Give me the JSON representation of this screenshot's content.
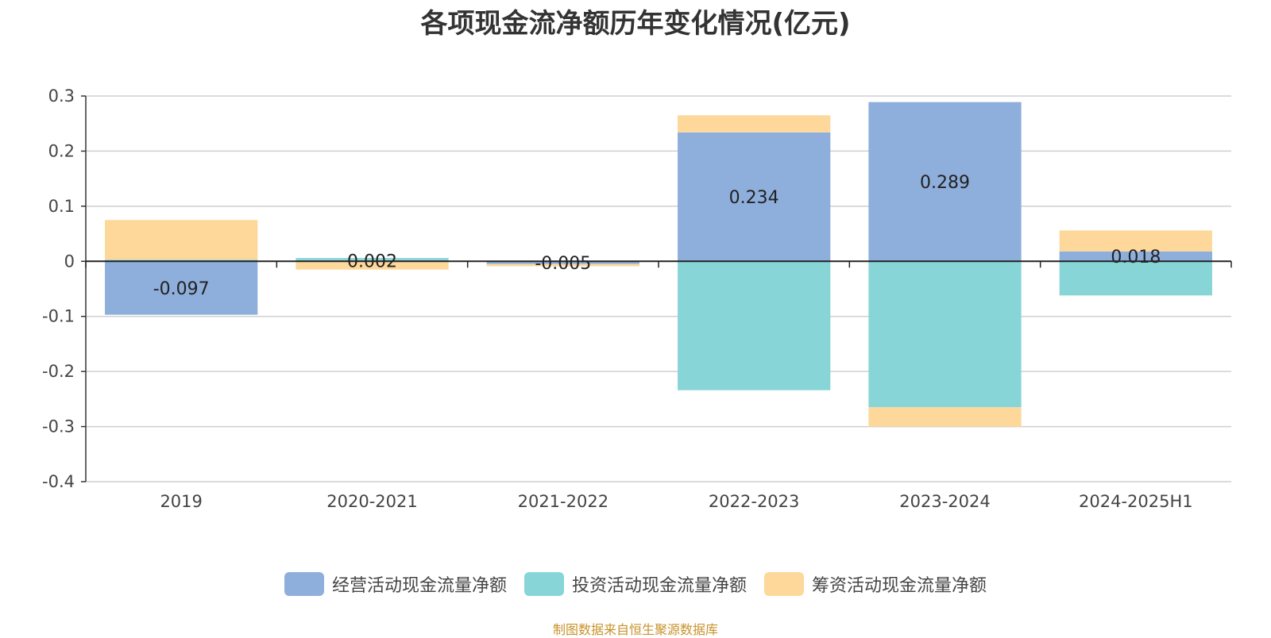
{
  "chart_data": {
    "type": "bar",
    "stacked": true,
    "title": "各项现金流净额历年变化情况(亿元)",
    "categories": [
      "2019",
      "2020-2021",
      "2021-2022",
      "2022-2023",
      "2023-2024",
      "2024-2025H1"
    ],
    "ylim": [
      -0.4,
      0.3
    ],
    "yticks": [
      "0.3",
      "0.2",
      "0.1",
      "0",
      "-0.1",
      "-0.2",
      "-0.3",
      "-0.4"
    ],
    "ytick_values": [
      0.3,
      0.2,
      0.1,
      0,
      -0.1,
      -0.2,
      -0.3,
      -0.4
    ],
    "grid": true,
    "legend_position": "bottom-center",
    "series": [
      {
        "name": "经营活动现金流量净额",
        "color": "#8eaedb",
        "values": [
          -0.097,
          0.002,
          -0.005,
          0.234,
          0.289,
          0.018
        ],
        "labels": [
          "-0.097",
          "0.002",
          "-0.005",
          "0.234",
          "0.289",
          "0.018"
        ]
      },
      {
        "name": "投资活动现金流量净额",
        "color": "#88d5d8",
        "values": [
          0.003,
          0.004,
          0.0,
          -0.234,
          -0.265,
          -0.062
        ]
      },
      {
        "name": "筹资活动现金流量净额",
        "color": "#fdd89a",
        "values": [
          0.072,
          -0.015,
          -0.004,
          0.031,
          -0.035,
          0.038
        ]
      }
    ]
  },
  "source_text": "制图数据来自恒生聚源数据库"
}
